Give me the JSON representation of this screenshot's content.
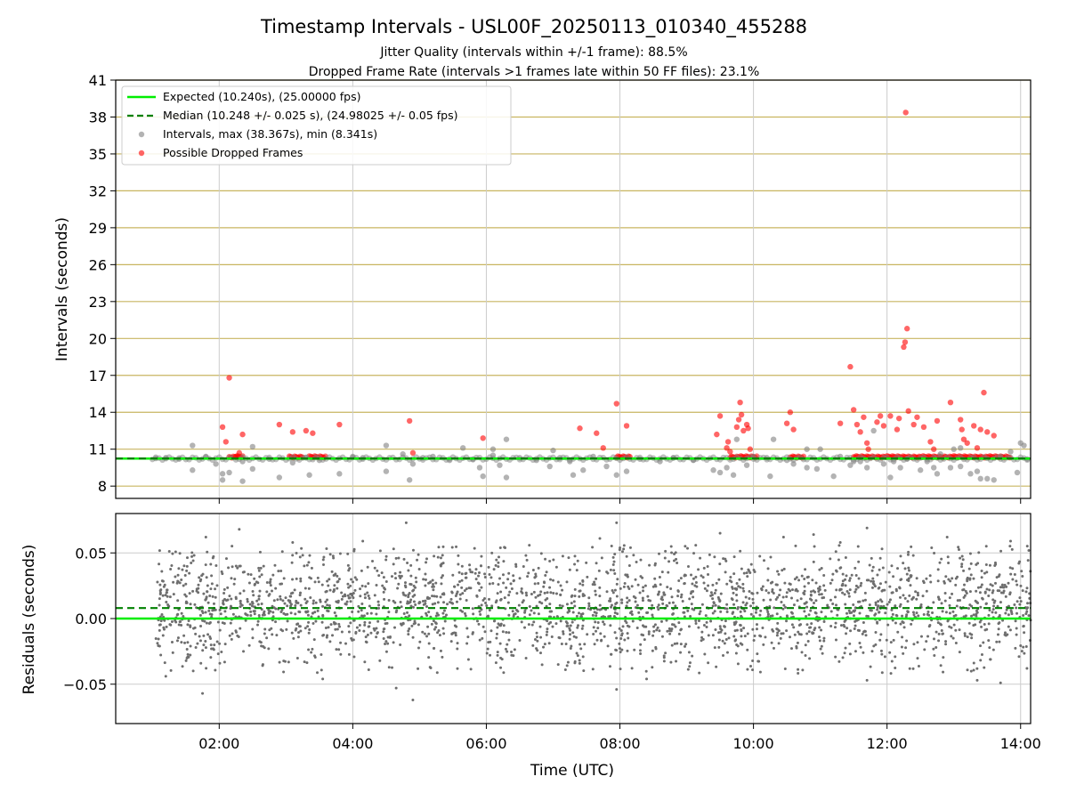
{
  "chart_data": {
    "type": "scatter",
    "title": "Timestamp Intervals - USL00F_20250113_010340_455288",
    "subtitle_lines": [
      "Jitter Quality (intervals within +/-1 frame): 88.5%",
      "Dropped Frame Rate (intervals >1 frames late within 50 FF files): 23.1%"
    ],
    "xlabel": "Time (UTC)",
    "x_range_hours": [
      0.45,
      14.15
    ],
    "x_ticks": [
      {
        "value": 2,
        "label": "02:00"
      },
      {
        "value": 4,
        "label": "04:00"
      },
      {
        "value": 6,
        "label": "06:00"
      },
      {
        "value": 8,
        "label": "08:00"
      },
      {
        "value": 10,
        "label": "10:00"
      },
      {
        "value": 12,
        "label": "12:00"
      },
      {
        "value": 14,
        "label": "14:00"
      }
    ],
    "intervals_panel": {
      "ylabel": "Intervals (seconds)",
      "ylim": [
        7.0,
        41.0
      ],
      "y_ticks": [
        8,
        11,
        14,
        17,
        20,
        23,
        26,
        29,
        32,
        35,
        38,
        41
      ],
      "expected_value": 10.24,
      "median_value": 10.248,
      "legend_placement": "top-left",
      "legend": [
        {
          "label": "Expected (10.240s), (25.00000 fps)",
          "kind": "line",
          "color": "#00ee00"
        },
        {
          "label": "Median (10.248 +/- 0.025 s), (24.98025 +/- 0.05 fps)",
          "kind": "dashed",
          "color": "#008000"
        },
        {
          "label": "Intervals, max (38.367s), min (8.341s)",
          "kind": "dot",
          "color": "#808080"
        },
        {
          "label": "Possible Dropped Frames",
          "kind": "dot",
          "color": "#ff0000"
        }
      ],
      "interval_points": [
        [
          1.05,
          10.25
        ],
        [
          1.2,
          10.3
        ],
        [
          1.4,
          10.2
        ],
        [
          1.6,
          11.3
        ],
        [
          1.6,
          9.3
        ],
        [
          1.8,
          10.4
        ],
        [
          1.95,
          9.8
        ],
        [
          2.05,
          8.5
        ],
        [
          2.05,
          9.0
        ],
        [
          2.15,
          9.1
        ],
        [
          2.35,
          8.4
        ],
        [
          2.35,
          10.0
        ],
        [
          2.5,
          9.4
        ],
        [
          2.5,
          11.2
        ],
        [
          2.75,
          10.2
        ],
        [
          2.9,
          8.7
        ],
        [
          3.1,
          9.9
        ],
        [
          3.3,
          10.3
        ],
        [
          3.35,
          8.9
        ],
        [
          3.5,
          10.1
        ],
        [
          3.8,
          9.0
        ],
        [
          4.0,
          10.4
        ],
        [
          4.15,
          10.3
        ],
        [
          4.5,
          9.2
        ],
        [
          4.5,
          11.3
        ],
        [
          4.75,
          10.6
        ],
        [
          4.85,
          8.5
        ],
        [
          4.9,
          9.8
        ],
        [
          5.05,
          10.3
        ],
        [
          5.2,
          10.4
        ],
        [
          5.45,
          10.1
        ],
        [
          5.65,
          11.1
        ],
        [
          5.8,
          10.2
        ],
        [
          5.9,
          9.5
        ],
        [
          5.95,
          8.8
        ],
        [
          6.1,
          10.5
        ],
        [
          6.1,
          11.0
        ],
        [
          6.2,
          9.7
        ],
        [
          6.3,
          8.7
        ],
        [
          6.3,
          11.8
        ],
        [
          6.5,
          10.3
        ],
        [
          6.75,
          10.1
        ],
        [
          6.95,
          9.6
        ],
        [
          7.0,
          10.9
        ],
        [
          7.1,
          10.3
        ],
        [
          7.25,
          10.0
        ],
        [
          7.3,
          8.9
        ],
        [
          7.45,
          9.3
        ],
        [
          7.6,
          10.4
        ],
        [
          7.8,
          9.6
        ],
        [
          7.95,
          8.9
        ],
        [
          8.1,
          9.2
        ],
        [
          8.3,
          10.2
        ],
        [
          8.6,
          10.0
        ],
        [
          8.8,
          10.3
        ],
        [
          9.1,
          10.1
        ],
        [
          9.4,
          9.3
        ],
        [
          9.5,
          9.1
        ],
        [
          9.6,
          9.5
        ],
        [
          9.7,
          8.9
        ],
        [
          9.75,
          11.8
        ],
        [
          9.9,
          9.7
        ],
        [
          10.0,
          10.4
        ],
        [
          10.2,
          10.3
        ],
        [
          10.25,
          8.8
        ],
        [
          10.3,
          11.8
        ],
        [
          10.5,
          10.1
        ],
        [
          10.6,
          9.8
        ],
        [
          10.8,
          9.5
        ],
        [
          10.8,
          11.0
        ],
        [
          10.95,
          9.4
        ],
        [
          11.0,
          11.0
        ],
        [
          11.2,
          8.8
        ],
        [
          11.3,
          10.4
        ],
        [
          11.45,
          9.7
        ],
        [
          11.5,
          10.0
        ],
        [
          11.6,
          10.0
        ],
        [
          11.7,
          9.5
        ],
        [
          11.8,
          12.5
        ],
        [
          11.95,
          9.8
        ],
        [
          12.05,
          8.7
        ],
        [
          12.1,
          10.0
        ],
        [
          12.2,
          9.5
        ],
        [
          12.3,
          10.2
        ],
        [
          12.5,
          9.3
        ],
        [
          12.6,
          10.0
        ],
        [
          12.7,
          9.5
        ],
        [
          12.75,
          9.0
        ],
        [
          12.8,
          10.6
        ],
        [
          12.95,
          9.5
        ],
        [
          13.0,
          11.0
        ],
        [
          13.1,
          9.6
        ],
        [
          13.1,
          11.1
        ],
        [
          13.25,
          9.0
        ],
        [
          13.35,
          9.2
        ],
        [
          13.4,
          8.6
        ],
        [
          13.5,
          8.6
        ],
        [
          13.6,
          8.5
        ],
        [
          13.7,
          10.4
        ],
        [
          13.85,
          10.8
        ],
        [
          13.95,
          9.1
        ],
        [
          14.0,
          11.5
        ],
        [
          14.05,
          11.3
        ],
        [
          14.1,
          10.2
        ]
      ],
      "dropped_points": [
        [
          2.05,
          12.8
        ],
        [
          2.1,
          11.6
        ],
        [
          2.15,
          16.8
        ],
        [
          2.25,
          10.4
        ],
        [
          2.3,
          10.7
        ],
        [
          2.35,
          12.2
        ],
        [
          2.9,
          13.0
        ],
        [
          3.1,
          12.4
        ],
        [
          3.3,
          12.5
        ],
        [
          3.4,
          12.3
        ],
        [
          3.8,
          13.0
        ],
        [
          4.85,
          13.3
        ],
        [
          4.9,
          10.7
        ],
        [
          5.95,
          11.9
        ],
        [
          7.4,
          12.7
        ],
        [
          7.65,
          12.3
        ],
        [
          7.75,
          11.1
        ],
        [
          7.95,
          14.7
        ],
        [
          8.1,
          12.9
        ],
        [
          9.45,
          12.2
        ],
        [
          9.5,
          13.7
        ],
        [
          9.6,
          11.1
        ],
        [
          9.62,
          11.6
        ],
        [
          9.65,
          10.8
        ],
        [
          9.75,
          12.8
        ],
        [
          9.78,
          13.4
        ],
        [
          9.8,
          14.8
        ],
        [
          9.82,
          13.8
        ],
        [
          9.85,
          12.5
        ],
        [
          9.9,
          13.0
        ],
        [
          9.92,
          12.7
        ],
        [
          9.95,
          11.0
        ],
        [
          10.5,
          13.1
        ],
        [
          10.55,
          14.0
        ],
        [
          10.6,
          12.6
        ],
        [
          11.3,
          13.1
        ],
        [
          11.45,
          17.7
        ],
        [
          11.5,
          14.2
        ],
        [
          11.55,
          13.0
        ],
        [
          11.6,
          12.4
        ],
        [
          11.65,
          13.6
        ],
        [
          11.7,
          11.5
        ],
        [
          11.72,
          11.0
        ],
        [
          11.85,
          13.2
        ],
        [
          11.9,
          13.7
        ],
        [
          11.95,
          12.9
        ],
        [
          12.05,
          13.7
        ],
        [
          12.15,
          12.6
        ],
        [
          12.18,
          13.5
        ],
        [
          12.25,
          19.3
        ],
        [
          12.27,
          19.7
        ],
        [
          12.3,
          20.8
        ],
        [
          12.32,
          14.1
        ],
        [
          12.4,
          13.0
        ],
        [
          12.45,
          13.6
        ],
        [
          12.55,
          12.8
        ],
        [
          12.65,
          11.6
        ],
        [
          12.7,
          11.0
        ],
        [
          12.75,
          13.3
        ],
        [
          12.95,
          14.8
        ],
        [
          13.1,
          13.4
        ],
        [
          13.12,
          12.6
        ],
        [
          13.15,
          11.8
        ],
        [
          13.2,
          11.5
        ],
        [
          13.3,
          12.9
        ],
        [
          13.35,
          11.1
        ],
        [
          13.4,
          12.6
        ],
        [
          13.45,
          15.6
        ],
        [
          13.5,
          12.4
        ],
        [
          13.6,
          12.1
        ],
        [
          12.28,
          38.367
        ]
      ],
      "dropped_bands": [
        [
          2.15,
          2.35
        ],
        [
          3.05,
          3.25
        ],
        [
          3.35,
          3.6
        ],
        [
          7.95,
          8.15
        ],
        [
          9.65,
          9.95
        ],
        [
          9.95,
          10.05
        ],
        [
          10.55,
          10.75
        ],
        [
          11.5,
          13.85
        ]
      ]
    },
    "residuals_panel": {
      "ylabel": "Residuals (seconds)",
      "ylim": [
        -0.08,
        0.08
      ],
      "y_ticks": [
        {
          "value": -0.05,
          "label": "−0.05"
        },
        {
          "value": 0.0,
          "label": "0.00"
        },
        {
          "value": 0.05,
          "label": "0.05"
        }
      ],
      "expected_value": 0.0,
      "median_value": 0.008,
      "x_start_hours": 1.05,
      "x_end_hours": 14.15,
      "point_count": 2600,
      "spread_std": 0.022,
      "center": 0.008,
      "outlier_points": [
        [
          1.2,
          -0.044
        ],
        [
          1.75,
          -0.057
        ],
        [
          1.8,
          0.062
        ],
        [
          2.3,
          0.068
        ],
        [
          3.1,
          0.058
        ],
        [
          3.55,
          -0.046
        ],
        [
          4.15,
          0.059
        ],
        [
          4.65,
          -0.053
        ],
        [
          4.8,
          0.073
        ],
        [
          4.9,
          -0.062
        ],
        [
          7.7,
          0.061
        ],
        [
          7.95,
          0.073
        ],
        [
          7.95,
          -0.054
        ],
        [
          8.4,
          -0.046
        ],
        [
          9.5,
          0.065
        ],
        [
          10.45,
          0.062
        ],
        [
          10.9,
          0.064
        ],
        [
          11.3,
          0.058
        ],
        [
          11.7,
          0.069
        ],
        [
          11.7,
          -0.047
        ],
        [
          12.9,
          0.062
        ],
        [
          13.35,
          -0.047
        ],
        [
          13.7,
          -0.049
        ],
        [
          13.85,
          0.059
        ]
      ]
    },
    "colors": {
      "expected": "#00ee00",
      "median": "#008000",
      "intervals": "#808080",
      "dropped": "#ff0000",
      "residual": "#6e6e6e",
      "hgrid": "#c8b560",
      "vgrid": "#cccccc"
    }
  }
}
